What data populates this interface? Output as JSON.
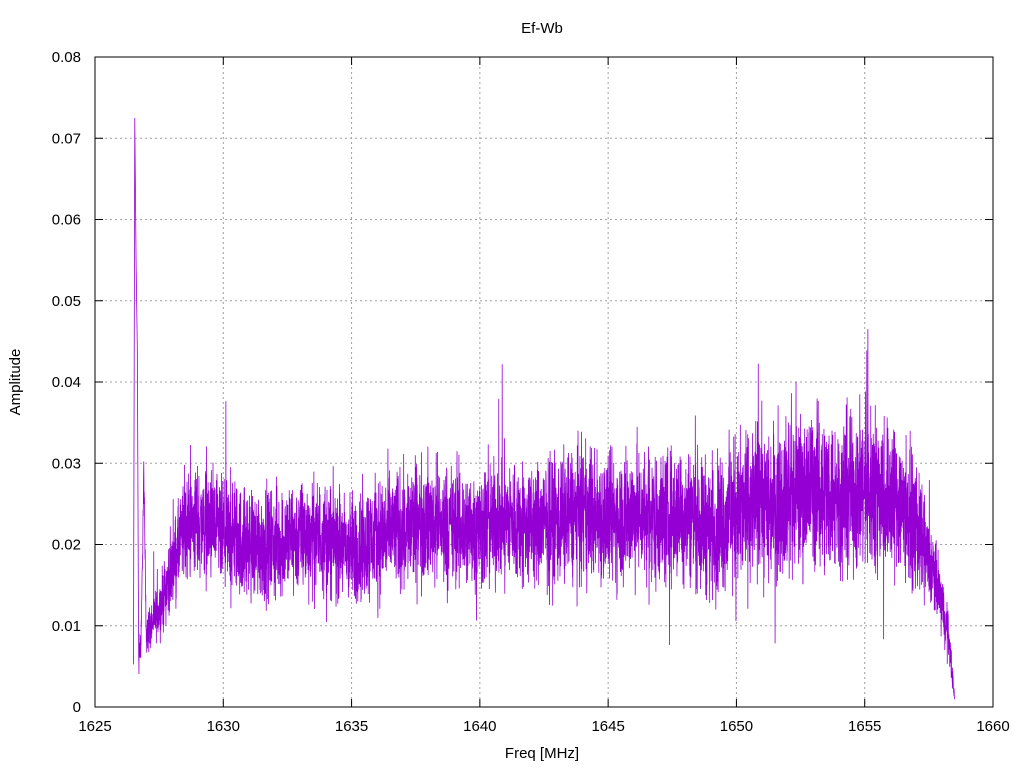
{
  "chart_data": {
    "type": "line",
    "title": "Ef-Wb",
    "xlabel": "Freq [MHz]",
    "ylabel": "Amplitude",
    "xlim": [
      1625,
      1660
    ],
    "ylim": [
      0,
      0.08
    ],
    "x_ticks": [
      "1625",
      "1630",
      "1635",
      "1640",
      "1645",
      "1650",
      "1655",
      "1660"
    ],
    "y_ticks": [
      "0",
      "0.01",
      "0.02",
      "0.03",
      "0.04",
      "0.05",
      "0.06",
      "0.07",
      "0.08"
    ],
    "grid": true,
    "legend": "none",
    "series": [
      {
        "color": "#9400d3",
        "x": [
          1626.5,
          1626.55,
          1626.6,
          1626.65,
          1626.7,
          1626.8,
          1626.9,
          1627.0,
          1627.5,
          1628.0,
          1628.5,
          1629.0,
          1630.0,
          1631.0,
          1632.0,
          1633.0,
          1634.0,
          1635.0,
          1636.0,
          1637.0,
          1638.0,
          1639.0,
          1640.0,
          1641.0,
          1642.0,
          1643.0,
          1644.0,
          1645.0,
          1646.0,
          1647.0,
          1648.0,
          1649.0,
          1650.0,
          1651.0,
          1652.0,
          1653.0,
          1654.0,
          1655.0,
          1656.0,
          1656.5,
          1657.0,
          1657.5,
          1658.0,
          1658.3,
          1658.5
        ],
        "y": [
          0.005,
          0.0725,
          0.055,
          0.044,
          0.007,
          0.008,
          0.029,
          0.009,
          0.012,
          0.017,
          0.022,
          0.023,
          0.021,
          0.02,
          0.02,
          0.021,
          0.021,
          0.019,
          0.021,
          0.022,
          0.023,
          0.022,
          0.022,
          0.023,
          0.022,
          0.023,
          0.024,
          0.023,
          0.024,
          0.023,
          0.024,
          0.022,
          0.024,
          0.025,
          0.026,
          0.027,
          0.026,
          0.027,
          0.026,
          0.025,
          0.022,
          0.018,
          0.013,
          0.008,
          0.001
        ],
        "noise": [
          0.004,
          0.0,
          0.0,
          0.0,
          0.004,
          0.004,
          0.003,
          0.004,
          0.005,
          0.007,
          0.009,
          0.01,
          0.01,
          0.01,
          0.01,
          0.01,
          0.01,
          0.01,
          0.011,
          0.011,
          0.011,
          0.011,
          0.011,
          0.011,
          0.011,
          0.012,
          0.012,
          0.012,
          0.012,
          0.012,
          0.012,
          0.012,
          0.013,
          0.014,
          0.014,
          0.014,
          0.014,
          0.015,
          0.014,
          0.013,
          0.011,
          0.008,
          0.006,
          0.004,
          0.001
        ]
      }
    ]
  }
}
